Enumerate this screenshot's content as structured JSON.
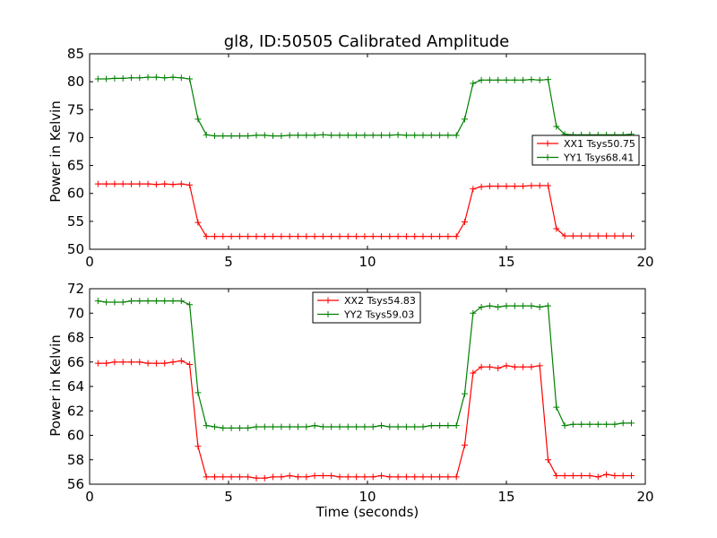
{
  "chart_data": [
    {
      "type": "line",
      "title": "gl8, ID:50505 Calibrated Amplitude",
      "xlabel": "",
      "ylabel": "Power in Kelvin",
      "xlim": [
        0,
        20
      ],
      "ylim": [
        50,
        85
      ],
      "xticks": [
        0,
        5,
        10,
        15,
        20
      ],
      "yticks": [
        50,
        55,
        60,
        65,
        70,
        75,
        80,
        85
      ],
      "grid": false,
      "legend_position": "center-right",
      "series": [
        {
          "name": "XX1 Tsys50.75",
          "color": "#ff0000",
          "marker": "plus",
          "x": [
            0.3,
            0.6,
            0.9,
            1.2,
            1.5,
            1.8,
            2.1,
            2.4,
            2.7,
            3.0,
            3.3,
            3.6,
            3.9,
            4.2,
            4.5,
            4.8,
            5.1,
            5.4,
            5.7,
            6.0,
            6.3,
            6.6,
            6.9,
            7.2,
            7.5,
            7.8,
            8.1,
            8.4,
            8.7,
            9.0,
            9.3,
            9.6,
            9.9,
            10.2,
            10.5,
            10.8,
            11.1,
            11.4,
            11.7,
            12.0,
            12.3,
            12.6,
            12.9,
            13.2,
            13.5,
            13.8,
            14.1,
            14.4,
            14.7,
            15.0,
            15.3,
            15.6,
            15.9,
            16.2,
            16.5,
            16.8,
            17.1,
            17.4,
            17.7,
            18.0,
            18.3,
            18.6,
            18.9,
            19.2,
            19.5
          ],
          "y": [
            61.7,
            61.7,
            61.7,
            61.7,
            61.7,
            61.7,
            61.7,
            61.6,
            61.7,
            61.6,
            61.7,
            61.5,
            54.8,
            52.3,
            52.3,
            52.3,
            52.3,
            52.3,
            52.3,
            52.3,
            52.3,
            52.3,
            52.3,
            52.3,
            52.3,
            52.3,
            52.3,
            52.3,
            52.3,
            52.3,
            52.3,
            52.3,
            52.3,
            52.3,
            52.3,
            52.3,
            52.3,
            52.3,
            52.3,
            52.3,
            52.3,
            52.3,
            52.3,
            52.3,
            54.9,
            60.8,
            61.2,
            61.3,
            61.3,
            61.3,
            61.3,
            61.3,
            61.4,
            61.4,
            61.4,
            53.7,
            52.4,
            52.4,
            52.4,
            52.4,
            52.4,
            52.4,
            52.4,
            52.4,
            52.4
          ]
        },
        {
          "name": "YY1 Tsys68.41",
          "color": "#008000",
          "marker": "plus",
          "x": [
            0.3,
            0.6,
            0.9,
            1.2,
            1.5,
            1.8,
            2.1,
            2.4,
            2.7,
            3.0,
            3.3,
            3.6,
            3.9,
            4.2,
            4.5,
            4.8,
            5.1,
            5.4,
            5.7,
            6.0,
            6.3,
            6.6,
            6.9,
            7.2,
            7.5,
            7.8,
            8.1,
            8.4,
            8.7,
            9.0,
            9.3,
            9.6,
            9.9,
            10.2,
            10.5,
            10.8,
            11.1,
            11.4,
            11.7,
            12.0,
            12.3,
            12.6,
            12.9,
            13.2,
            13.5,
            13.8,
            14.1,
            14.4,
            14.7,
            15.0,
            15.3,
            15.6,
            15.9,
            16.2,
            16.5,
            16.8,
            17.1,
            17.4,
            17.7,
            18.0,
            18.3,
            18.6,
            18.9,
            19.2,
            19.5
          ],
          "y": [
            80.5,
            80.5,
            80.6,
            80.6,
            80.7,
            80.7,
            80.8,
            80.8,
            80.7,
            80.8,
            80.7,
            80.5,
            73.3,
            70.5,
            70.3,
            70.3,
            70.3,
            70.3,
            70.3,
            70.4,
            70.4,
            70.3,
            70.3,
            70.4,
            70.4,
            70.4,
            70.4,
            70.5,
            70.4,
            70.4,
            70.4,
            70.4,
            70.4,
            70.4,
            70.4,
            70.4,
            70.5,
            70.4,
            70.4,
            70.4,
            70.4,
            70.4,
            70.4,
            70.4,
            73.3,
            79.7,
            80.3,
            80.3,
            80.3,
            80.3,
            80.3,
            80.3,
            80.4,
            80.3,
            80.4,
            72.0,
            70.6,
            70.5,
            70.5,
            70.5,
            70.5,
            70.5,
            70.5,
            70.5,
            70.6
          ]
        }
      ]
    },
    {
      "type": "line",
      "title": "",
      "xlabel": "Time (seconds)",
      "ylabel": "Power in Kelvin",
      "xlim": [
        0,
        20
      ],
      "ylim": [
        56,
        72
      ],
      "xticks": [
        0,
        5,
        10,
        15,
        20
      ],
      "yticks": [
        56,
        58,
        60,
        62,
        64,
        66,
        68,
        70,
        72
      ],
      "grid": false,
      "legend_position": "top-center",
      "series": [
        {
          "name": "XX2 Tsys54.83",
          "color": "#ff0000",
          "marker": "plus",
          "x": [
            0.3,
            0.6,
            0.9,
            1.2,
            1.5,
            1.8,
            2.1,
            2.4,
            2.7,
            3.0,
            3.3,
            3.6,
            3.9,
            4.2,
            4.5,
            4.8,
            5.1,
            5.4,
            5.7,
            6.0,
            6.3,
            6.6,
            6.9,
            7.2,
            7.5,
            7.8,
            8.1,
            8.4,
            8.7,
            9.0,
            9.3,
            9.6,
            9.9,
            10.2,
            10.5,
            10.8,
            11.1,
            11.4,
            11.7,
            12.0,
            12.3,
            12.6,
            12.9,
            13.2,
            13.5,
            13.8,
            14.1,
            14.4,
            14.7,
            15.0,
            15.3,
            15.6,
            15.9,
            16.2,
            16.5,
            16.8,
            17.1,
            17.4,
            17.7,
            18.0,
            18.3,
            18.6,
            18.9,
            19.2,
            19.5
          ],
          "y": [
            65.9,
            65.9,
            66.0,
            66.0,
            66.0,
            66.0,
            65.9,
            65.9,
            65.9,
            66.0,
            66.1,
            65.8,
            59.1,
            56.6,
            56.6,
            56.6,
            56.6,
            56.6,
            56.6,
            56.5,
            56.5,
            56.6,
            56.6,
            56.7,
            56.6,
            56.6,
            56.7,
            56.7,
            56.7,
            56.6,
            56.6,
            56.6,
            56.6,
            56.6,
            56.7,
            56.6,
            56.6,
            56.6,
            56.6,
            56.6,
            56.6,
            56.6,
            56.6,
            56.6,
            59.2,
            65.1,
            65.6,
            65.6,
            65.5,
            65.7,
            65.6,
            65.6,
            65.6,
            65.7,
            58.0,
            56.7,
            56.7,
            56.7,
            56.7,
            56.7,
            56.6,
            56.8,
            56.7,
            56.7,
            56.7
          ],
          "x2_note": ""
        },
        {
          "name": "YY2 Tsys59.03",
          "color": "#008000",
          "marker": "plus",
          "x": [
            0.3,
            0.6,
            0.9,
            1.2,
            1.5,
            1.8,
            2.1,
            2.4,
            2.7,
            3.0,
            3.3,
            3.6,
            3.9,
            4.2,
            4.5,
            4.8,
            5.1,
            5.4,
            5.7,
            6.0,
            6.3,
            6.6,
            6.9,
            7.2,
            7.5,
            7.8,
            8.1,
            8.4,
            8.7,
            9.0,
            9.3,
            9.6,
            9.9,
            10.2,
            10.5,
            10.8,
            11.1,
            11.4,
            11.7,
            12.0,
            12.3,
            12.6,
            12.9,
            13.2,
            13.5,
            13.8,
            14.1,
            14.4,
            14.7,
            15.0,
            15.3,
            15.6,
            15.9,
            16.2,
            16.5,
            16.8,
            17.1,
            17.4,
            17.7,
            18.0,
            18.3,
            18.6,
            18.9,
            19.2,
            19.5
          ],
          "y": [
            71.0,
            70.9,
            70.9,
            70.9,
            71.0,
            71.0,
            71.0,
            71.0,
            71.0,
            71.0,
            71.0,
            70.7,
            63.5,
            60.8,
            60.7,
            60.6,
            60.6,
            60.6,
            60.6,
            60.7,
            60.7,
            60.7,
            60.7,
            60.7,
            60.7,
            60.7,
            60.8,
            60.7,
            60.7,
            60.7,
            60.7,
            60.7,
            60.7,
            60.7,
            60.8,
            60.7,
            60.7,
            60.7,
            60.7,
            60.7,
            60.8,
            60.8,
            60.8,
            60.8,
            63.4,
            70.0,
            70.5,
            70.6,
            70.5,
            70.6,
            70.6,
            70.6,
            70.6,
            70.5,
            70.6,
            62.3,
            60.8,
            60.9,
            60.9,
            60.9,
            60.9,
            60.9,
            60.9,
            61.0,
            61.0
          ]
        }
      ]
    }
  ]
}
